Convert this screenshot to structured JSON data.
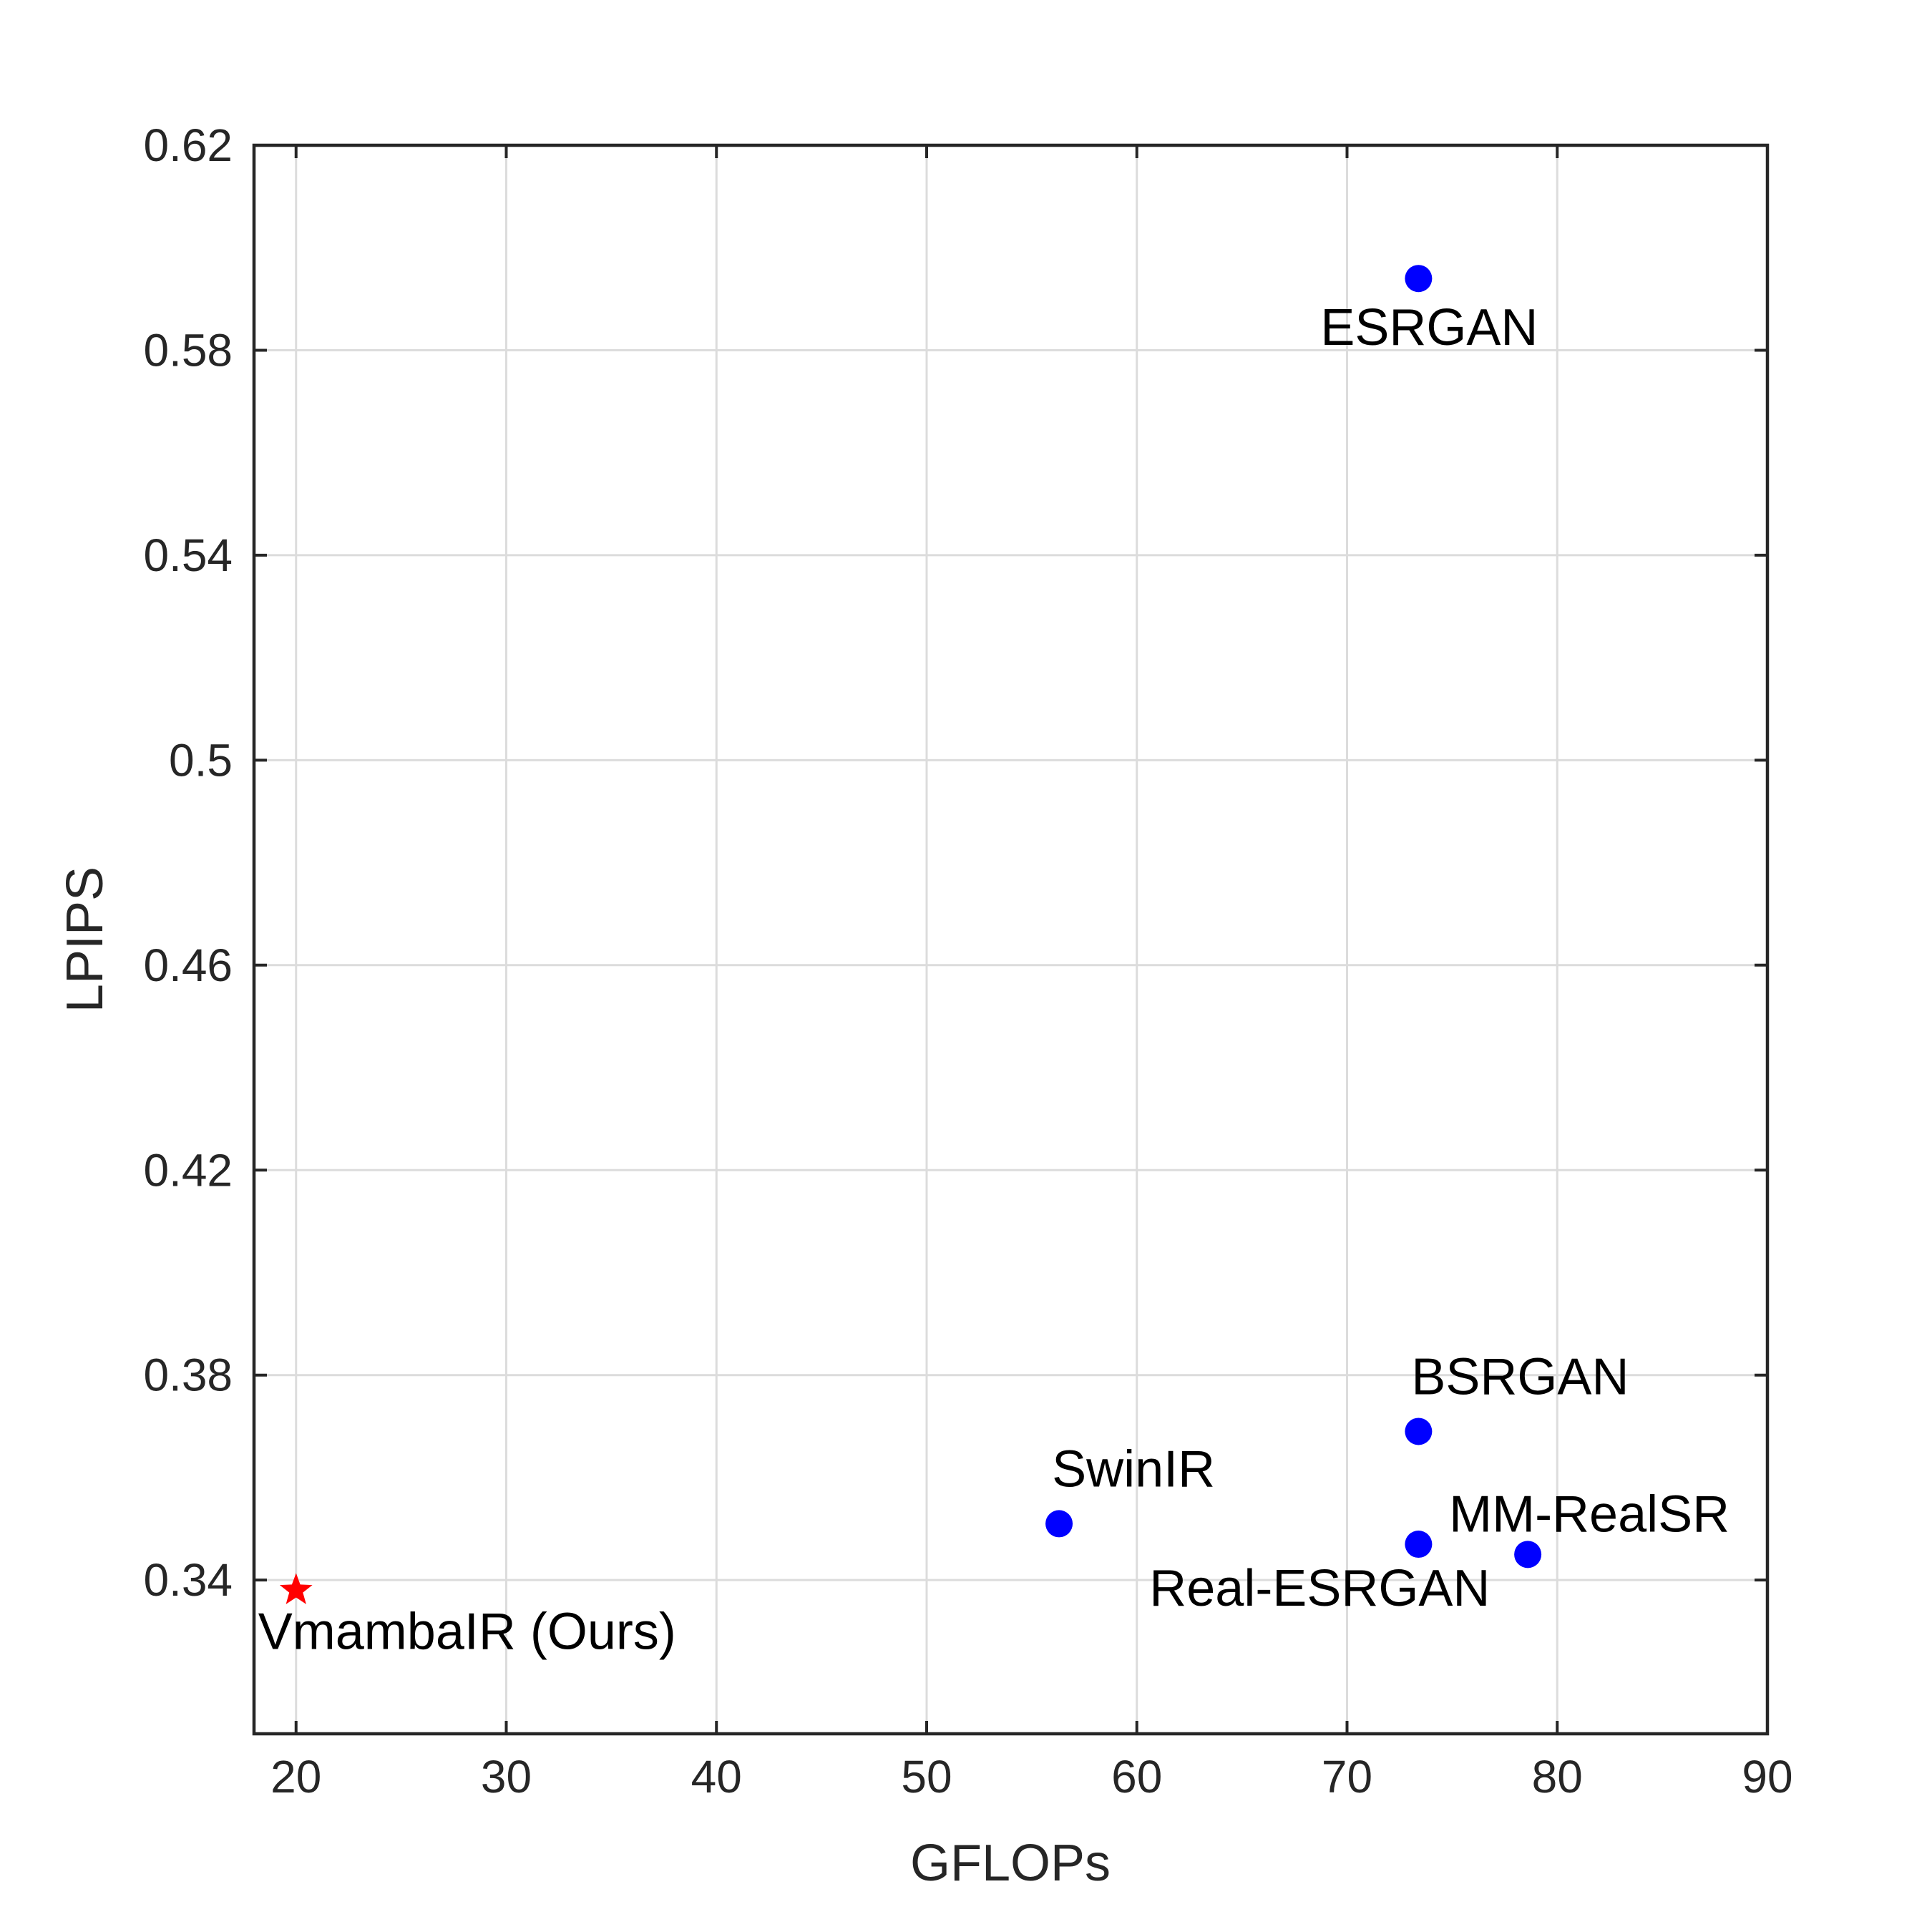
{
  "chart_data": {
    "type": "scatter",
    "title": "",
    "xlabel": "GFLOPs",
    "ylabel": "LPIPS",
    "xlim": [
      18,
      90
    ],
    "ylim": [
      0.31,
      0.62
    ],
    "xticks": [
      "20",
      "30",
      "40",
      "50",
      "60",
      "70",
      "80",
      "90"
    ],
    "yticks": [
      "0.34",
      "0.38",
      "0.42",
      "0.46",
      "0.5",
      "0.54",
      "0.58",
      "0.62"
    ],
    "grid": true,
    "colors": {
      "baseline": "#0000ff",
      "ours": "#ff0000"
    },
    "points": [
      {
        "label": "ESRGAN",
        "x": 73.4,
        "y": 0.594,
        "marker": "circle",
        "group": "baseline",
        "label_pos": "below"
      },
      {
        "label": "BSRGAN",
        "x": 73.4,
        "y": 0.369,
        "marker": "circle",
        "group": "baseline",
        "label_pos": "above"
      },
      {
        "label": "SwinIR",
        "x": 56.3,
        "y": 0.351,
        "marker": "circle",
        "group": "baseline",
        "label_pos": "above"
      },
      {
        "label": "Real-ESRGAN",
        "x": 73.4,
        "y": 0.347,
        "marker": "circle",
        "group": "baseline",
        "label_pos": "below-left"
      },
      {
        "label": "MM-RealSR",
        "x": 78.6,
        "y": 0.345,
        "marker": "circle",
        "group": "baseline",
        "label_pos": "above-left"
      },
      {
        "label": "VmambaIR (Ours)",
        "x": 20.0,
        "y": 0.338,
        "marker": "star",
        "group": "ours",
        "label_pos": "below-right"
      }
    ]
  }
}
